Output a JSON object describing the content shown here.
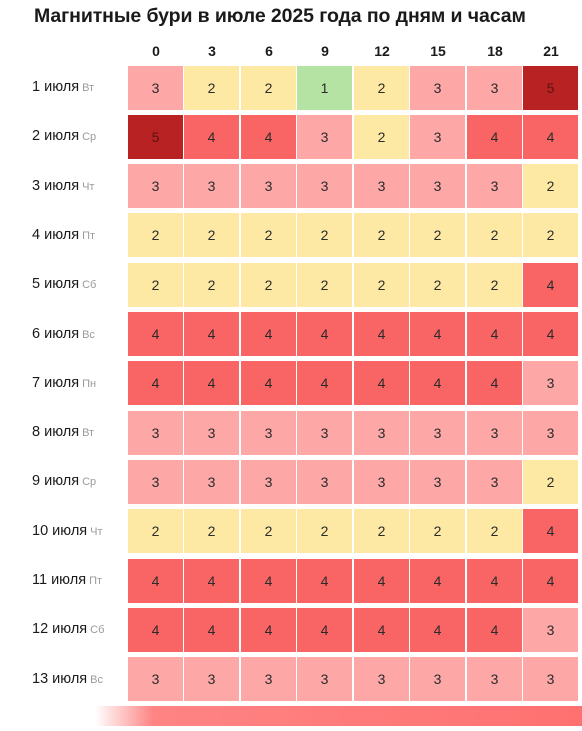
{
  "chart_data": {
    "type": "heatmap",
    "title": "Магнитные бури в июле 2025 года по дням и часам",
    "x": [
      "0",
      "3",
      "6",
      "9",
      "12",
      "15",
      "18",
      "21"
    ],
    "rows": [
      {
        "date": "1 июля",
        "weekday": "Вт",
        "values": [
          3,
          2,
          2,
          1,
          2,
          3,
          3,
          5
        ]
      },
      {
        "date": "2 июля",
        "weekday": "Ср",
        "values": [
          5,
          4,
          4,
          3,
          2,
          3,
          4,
          4
        ]
      },
      {
        "date": "3 июля",
        "weekday": "Чт",
        "values": [
          3,
          3,
          3,
          3,
          3,
          3,
          3,
          2
        ]
      },
      {
        "date": "4 июля",
        "weekday": "Пт",
        "values": [
          2,
          2,
          2,
          2,
          2,
          2,
          2,
          2
        ]
      },
      {
        "date": "5 июля",
        "weekday": "Сб",
        "values": [
          2,
          2,
          2,
          2,
          2,
          2,
          2,
          4
        ]
      },
      {
        "date": "6 июля",
        "weekday": "Вс",
        "values": [
          4,
          4,
          4,
          4,
          4,
          4,
          4,
          4
        ]
      },
      {
        "date": "7 июля",
        "weekday": "Пн",
        "values": [
          4,
          4,
          4,
          4,
          4,
          4,
          4,
          3
        ]
      },
      {
        "date": "8 июля",
        "weekday": "Вт",
        "values": [
          3,
          3,
          3,
          3,
          3,
          3,
          3,
          3
        ]
      },
      {
        "date": "9 июля",
        "weekday": "Ср",
        "values": [
          3,
          3,
          3,
          3,
          3,
          3,
          3,
          2
        ]
      },
      {
        "date": "10 июля",
        "weekday": "Чт",
        "values": [
          2,
          2,
          2,
          2,
          2,
          2,
          2,
          4
        ]
      },
      {
        "date": "11 июля",
        "weekday": "Пт",
        "values": [
          4,
          4,
          4,
          4,
          4,
          4,
          4,
          4
        ]
      },
      {
        "date": "12 июля",
        "weekday": "Сб",
        "values": [
          4,
          4,
          4,
          4,
          4,
          4,
          4,
          3
        ]
      },
      {
        "date": "13 июля",
        "weekday": "Вс",
        "values": [
          3,
          3,
          3,
          3,
          3,
          3,
          3,
          3
        ]
      }
    ],
    "level_colors": {
      "1": "#b5e3a3",
      "2": "#fde9a4",
      "3": "#fda7a7",
      "4": "#f96565",
      "5": "#b82222"
    },
    "grid": true,
    "legend": "none"
  }
}
